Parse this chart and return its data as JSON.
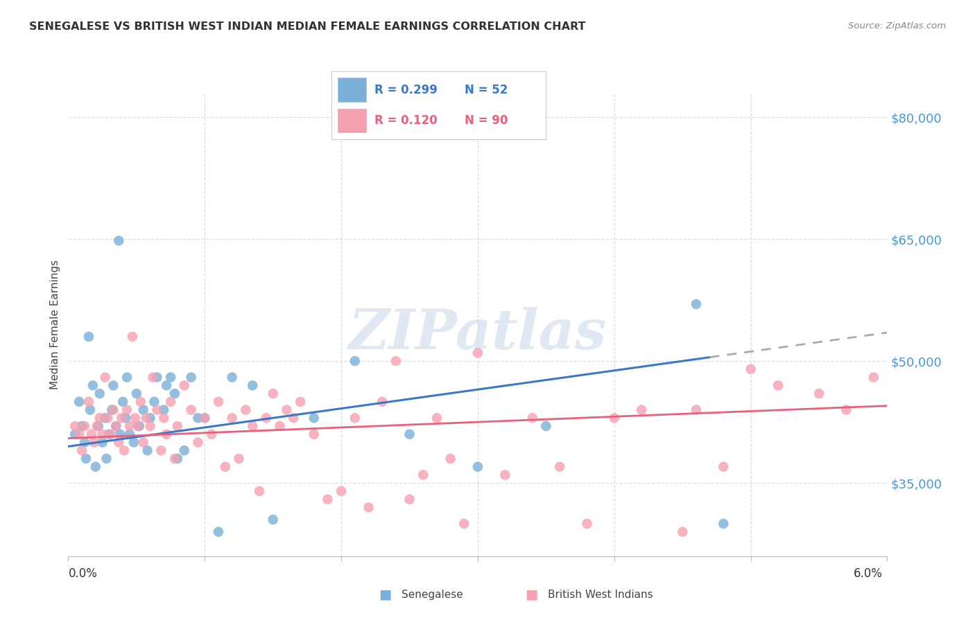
{
  "title": "SENEGALESE VS BRITISH WEST INDIAN MEDIAN FEMALE EARNINGS CORRELATION CHART",
  "source": "Source: ZipAtlas.com",
  "ylabel": "Median Female Earnings",
  "xlim": [
    0.0,
    6.0
  ],
  "ylim": [
    26000,
    83000
  ],
  "yticks": [
    35000,
    50000,
    65000,
    80000
  ],
  "ytick_labels": [
    "$35,000",
    "$50,000",
    "$65,000",
    "$80,000"
  ],
  "background_color": "#ffffff",
  "grid_color": "#dddddd",
  "watermark_text": "ZIPatlas",
  "senegalese_color": "#7ab0d8",
  "bwi_color": "#f5a0b0",
  "line_blue": "#3a78c9",
  "line_pink": "#e8607a",
  "line_dashed_color": "#aaaaaa",
  "blue_line_x0": 0.0,
  "blue_line_y0": 39500,
  "blue_line_x1": 6.0,
  "blue_line_y1": 53500,
  "blue_solid_end": 4.7,
  "pink_line_x0": 0.0,
  "pink_line_y0": 40500,
  "pink_line_x1": 6.0,
  "pink_line_y1": 44500,
  "senegalese_x": [
    0.05,
    0.08,
    0.1,
    0.12,
    0.13,
    0.15,
    0.16,
    0.18,
    0.2,
    0.22,
    0.23,
    0.25,
    0.27,
    0.28,
    0.3,
    0.32,
    0.33,
    0.35,
    0.37,
    0.38,
    0.4,
    0.42,
    0.43,
    0.45,
    0.48,
    0.5,
    0.52,
    0.55,
    0.58,
    0.6,
    0.63,
    0.65,
    0.7,
    0.72,
    0.75,
    0.78,
    0.8,
    0.85,
    0.9,
    0.95,
    1.0,
    1.1,
    1.2,
    1.35,
    1.5,
    1.8,
    2.1,
    2.5,
    3.0,
    3.5,
    4.6,
    4.8
  ],
  "senegalese_y": [
    41000,
    45000,
    42000,
    40000,
    38000,
    53000,
    44000,
    47000,
    37000,
    42000,
    46000,
    40000,
    43000,
    38000,
    41000,
    44000,
    47000,
    42000,
    64800,
    41000,
    45000,
    43000,
    48000,
    41000,
    40000,
    46000,
    42000,
    44000,
    39000,
    43000,
    45000,
    48000,
    44000,
    47000,
    48000,
    46000,
    38000,
    39000,
    48000,
    43000,
    43000,
    29000,
    48000,
    47000,
    30500,
    43000,
    50000,
    41000,
    37000,
    42000,
    57000,
    30000
  ],
  "bwi_x": [
    0.05,
    0.08,
    0.1,
    0.12,
    0.15,
    0.17,
    0.19,
    0.21,
    0.23,
    0.25,
    0.27,
    0.29,
    0.31,
    0.33,
    0.35,
    0.37,
    0.39,
    0.41,
    0.43,
    0.45,
    0.47,
    0.49,
    0.51,
    0.53,
    0.55,
    0.57,
    0.6,
    0.62,
    0.65,
    0.68,
    0.7,
    0.72,
    0.75,
    0.78,
    0.8,
    0.85,
    0.9,
    0.95,
    1.0,
    1.05,
    1.1,
    1.15,
    1.2,
    1.25,
    1.3,
    1.35,
    1.4,
    1.45,
    1.5,
    1.55,
    1.6,
    1.65,
    1.7,
    1.8,
    1.9,
    2.0,
    2.1,
    2.2,
    2.3,
    2.4,
    2.5,
    2.6,
    2.7,
    2.8,
    2.9,
    3.0,
    3.2,
    3.4,
    3.6,
    3.8,
    4.0,
    4.2,
    4.5,
    4.6,
    4.8,
    5.0,
    5.2,
    5.5,
    5.7,
    5.9
  ],
  "bwi_y": [
    42000,
    41000,
    39000,
    42000,
    45000,
    41000,
    40000,
    42000,
    43000,
    41000,
    48000,
    43000,
    41000,
    44000,
    42000,
    40000,
    43000,
    39000,
    44000,
    42000,
    53000,
    43000,
    42000,
    45000,
    40000,
    43000,
    42000,
    48000,
    44000,
    39000,
    43000,
    41000,
    45000,
    38000,
    42000,
    47000,
    44000,
    40000,
    43000,
    41000,
    45000,
    37000,
    43000,
    38000,
    44000,
    42000,
    34000,
    43000,
    46000,
    42000,
    44000,
    43000,
    45000,
    41000,
    33000,
    34000,
    43000,
    32000,
    45000,
    50000,
    33000,
    36000,
    43000,
    38000,
    30000,
    51000,
    36000,
    43000,
    37000,
    30000,
    43000,
    44000,
    29000,
    44000,
    37000,
    49000,
    47000,
    46000,
    44000,
    48000
  ]
}
